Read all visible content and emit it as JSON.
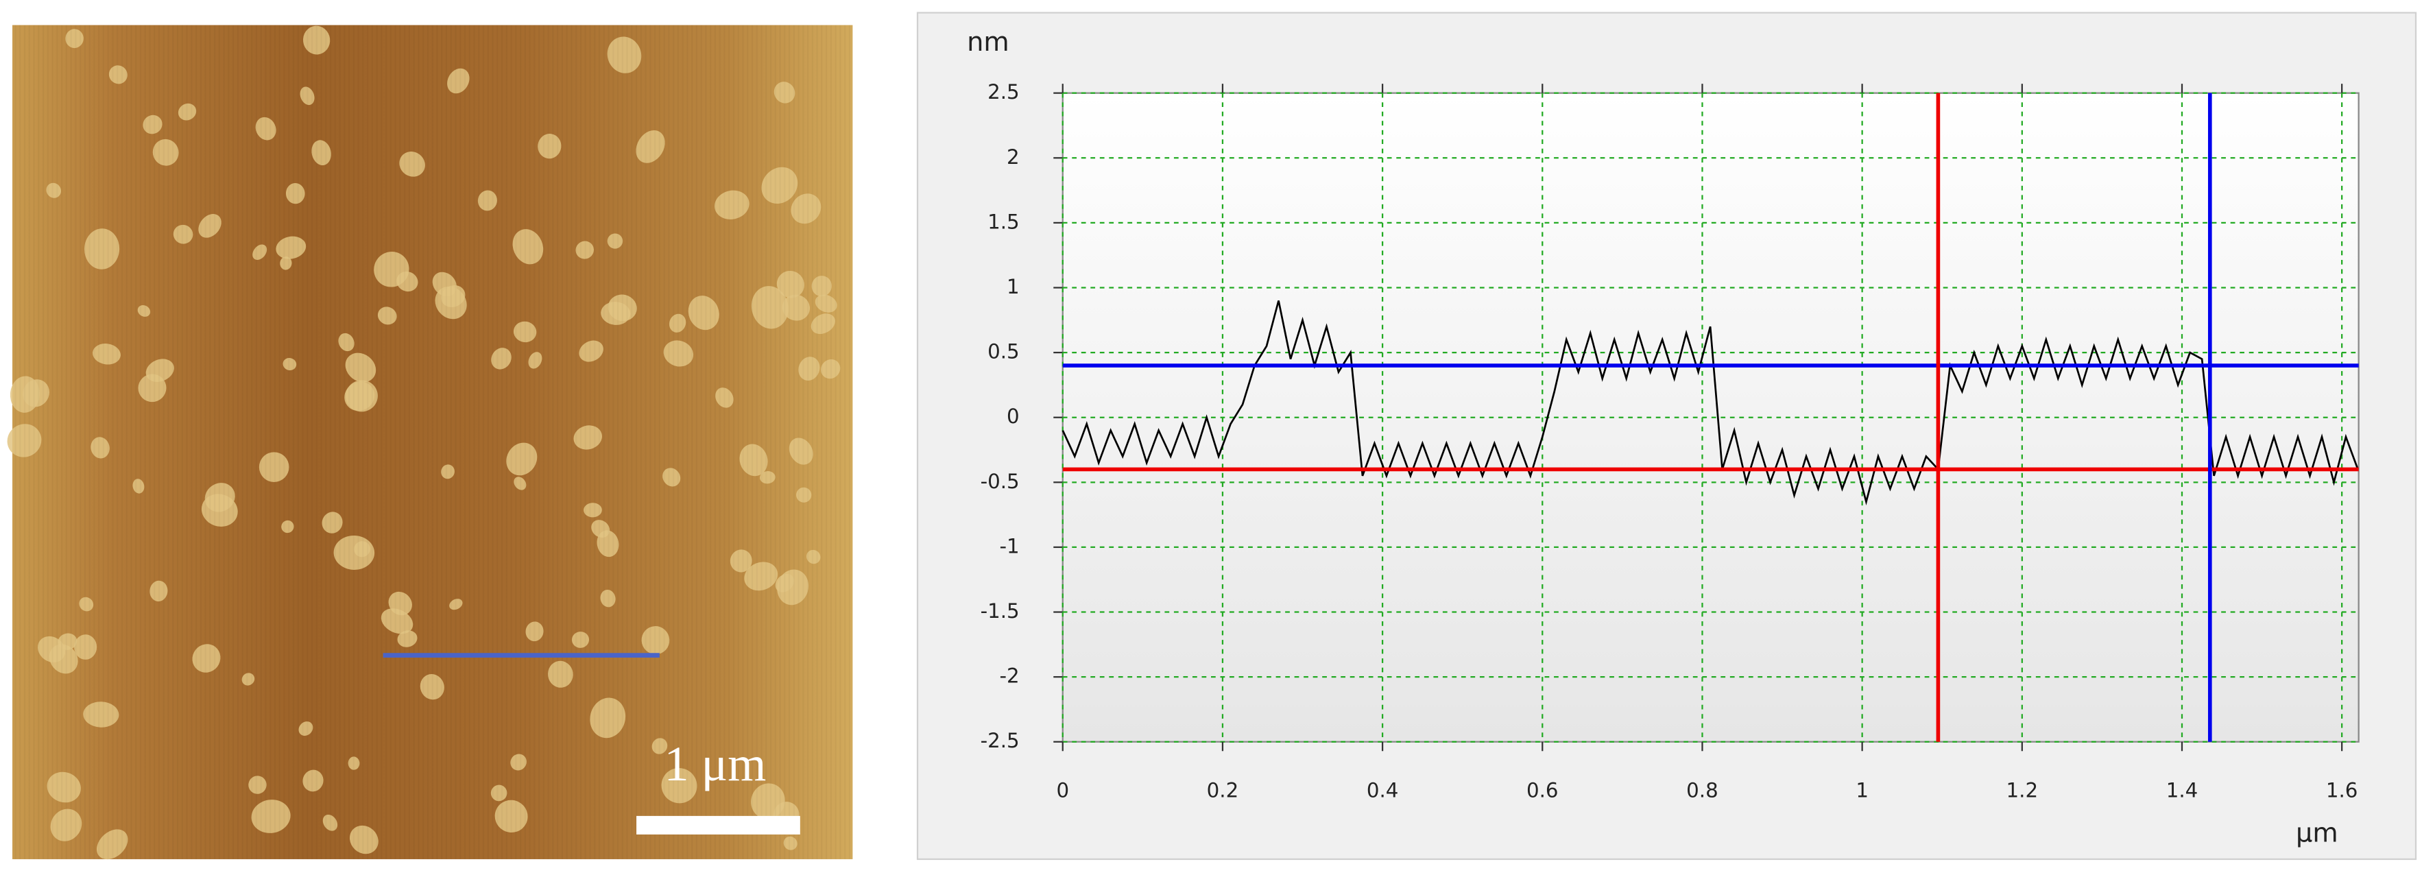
{
  "image": {
    "scale_bar_label": "1 μm"
  },
  "chart_data": {
    "type": "line",
    "ylabel": "nm",
    "xlabel": "μm",
    "xlim": [
      0,
      1.621
    ],
    "ylim": [
      -2.5,
      2.5
    ],
    "xticks": [
      0,
      0.2,
      0.4,
      0.6,
      0.8,
      1,
      1.2,
      1.4,
      1.6
    ],
    "yticks": [
      2.5,
      2,
      1.5,
      1,
      0.5,
      0,
      -0.5,
      -1,
      -1.5,
      -2,
      -2.5
    ],
    "grid": true,
    "x": [
      0,
      0.015,
      0.03,
      0.045,
      0.06,
      0.075,
      0.09,
      0.105,
      0.12,
      0.135,
      0.15,
      0.165,
      0.18,
      0.195,
      0.21,
      0.225,
      0.24,
      0.255,
      0.27,
      0.285,
      0.3,
      0.315,
      0.33,
      0.345,
      0.36,
      0.375,
      0.39,
      0.405,
      0.42,
      0.435,
      0.45,
      0.465,
      0.48,
      0.495,
      0.51,
      0.525,
      0.54,
      0.555,
      0.57,
      0.585,
      0.6,
      0.615,
      0.63,
      0.645,
      0.66,
      0.675,
      0.69,
      0.705,
      0.72,
      0.735,
      0.75,
      0.765,
      0.78,
      0.795,
      0.81,
      0.825,
      0.84,
      0.855,
      0.87,
      0.885,
      0.9,
      0.915,
      0.93,
      0.945,
      0.96,
      0.975,
      0.99,
      1.005,
      1.02,
      1.035,
      1.05,
      1.065,
      1.08,
      1.095,
      1.11,
      1.125,
      1.14,
      1.155,
      1.17,
      1.185,
      1.2,
      1.215,
      1.23,
      1.245,
      1.26,
      1.275,
      1.29,
      1.305,
      1.32,
      1.335,
      1.35,
      1.365,
      1.38,
      1.395,
      1.41,
      1.425,
      1.44,
      1.455,
      1.47,
      1.485,
      1.5,
      1.515,
      1.53,
      1.545,
      1.56,
      1.575,
      1.59,
      1.605,
      1.62
    ],
    "series": [
      {
        "color": "#000000",
        "values": [
          -0.1,
          -0.3,
          -0.05,
          -0.35,
          -0.1,
          -0.3,
          -0.05,
          -0.35,
          -0.1,
          -0.3,
          -0.05,
          -0.3,
          0.0,
          -0.3,
          -0.05,
          0.1,
          0.4,
          0.55,
          0.9,
          0.45,
          0.75,
          0.4,
          0.7,
          0.35,
          0.5,
          -0.45,
          -0.2,
          -0.45,
          -0.2,
          -0.45,
          -0.2,
          -0.45,
          -0.2,
          -0.45,
          -0.2,
          -0.45,
          -0.2,
          -0.45,
          -0.2,
          -0.45,
          -0.15,
          0.2,
          0.6,
          0.35,
          0.65,
          0.3,
          0.6,
          0.3,
          0.65,
          0.35,
          0.6,
          0.3,
          0.65,
          0.35,
          0.7,
          -0.4,
          -0.1,
          -0.5,
          -0.2,
          -0.5,
          -0.25,
          -0.6,
          -0.3,
          -0.55,
          -0.25,
          -0.55,
          -0.3,
          -0.65,
          -0.3,
          -0.55,
          -0.3,
          -0.55,
          -0.3,
          -0.4,
          0.4,
          0.2,
          0.5,
          0.25,
          0.55,
          0.3,
          0.55,
          0.3,
          0.6,
          0.3,
          0.55,
          0.25,
          0.55,
          0.3,
          0.6,
          0.3,
          0.55,
          0.3,
          0.55,
          0.25,
          0.5,
          0.45,
          -0.45,
          -0.15,
          -0.45,
          -0.15,
          -0.45,
          -0.15,
          -0.45,
          -0.15,
          -0.45,
          -0.15,
          -0.5,
          -0.15,
          -0.4
        ]
      }
    ],
    "hlines": [
      {
        "value": 0.4,
        "color": "#0000ee"
      },
      {
        "value": -0.4,
        "color": "#ee0000"
      }
    ],
    "vlines": [
      {
        "value": 1.095,
        "color": "#ee0000"
      },
      {
        "value": 1.435,
        "color": "#0000ee"
      }
    ]
  }
}
